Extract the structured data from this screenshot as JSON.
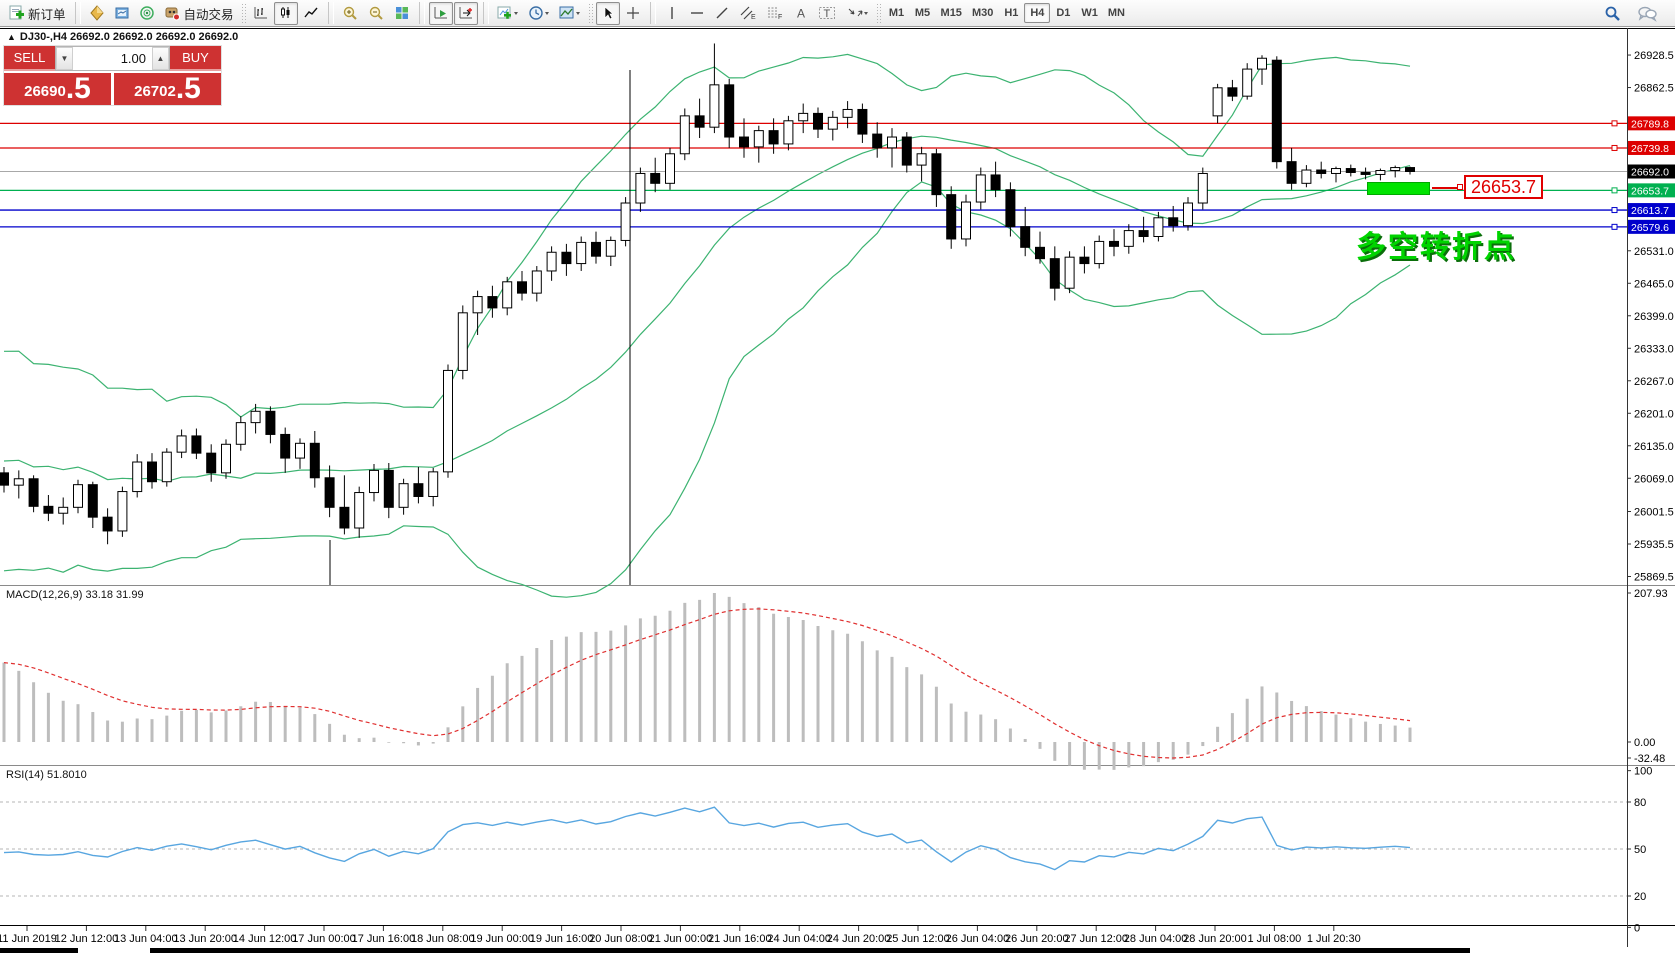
{
  "toolbar": {
    "new_order_label": "新订单",
    "autotrading_label": "自动交易",
    "timeframes": [
      "M1",
      "M5",
      "M15",
      "M30",
      "H1",
      "H4",
      "D1",
      "W1",
      "MN"
    ],
    "active_timeframe": "H4"
  },
  "trade_panel": {
    "sell_label": "SELL",
    "buy_label": "BUY",
    "volume": "1.00",
    "sell_price_main": "26690",
    "sell_price_frac": ".5",
    "buy_price_main": "26702",
    "buy_price_frac": ".5"
  },
  "chart": {
    "symbol_title": "DJ30-,H4  26692.0 26692.0 26692.0 26692.0",
    "macd_label": "MACD(12,26,9) 33.18 31.99",
    "rsi_label": "RSI(14) 51.8010",
    "annotation_price": "26653.7",
    "annotation_text": "多空转折点"
  },
  "colors": {
    "panel_red": "#ce3232",
    "level_red": "#dd0000",
    "level_blue": "#0000cc",
    "level_green": "#00b050",
    "current_line": "#a8a8a8",
    "current_tag": "#000000",
    "bollinger": "#3cb371",
    "macd_hist": "#bdbdbd",
    "macd_signal": "#e03030",
    "rsi_line": "#58a6e0",
    "zone_green": "#00e400",
    "note_green": "#00d400"
  },
  "chart_data": {
    "type": "candlestick",
    "symbol": "DJ30-",
    "timeframe": "H4",
    "title": "DJ30-,H4 26692.0 26692.0 26692.0 26692.0",
    "y_axis_ticks": [
      26928.5,
      26862.5,
      26531.0,
      26465.0,
      26399.0,
      26333.0,
      26267.0,
      26201.0,
      26135.0,
      26069.0,
      26001.5,
      25935.5,
      25869.5
    ],
    "level_lines": [
      {
        "price": 26789.8,
        "label": "26789.8",
        "color": "#dd0000"
      },
      {
        "price": 26739.8,
        "label": "26739.8",
        "color": "#dd0000"
      },
      {
        "price": 26653.7,
        "label": "26653.7",
        "color": "#00b050"
      },
      {
        "price": 26613.7,
        "label": "26613.7",
        "color": "#0000cc"
      },
      {
        "price": 26579.6,
        "label": "26579.6",
        "color": "#0000cc"
      }
    ],
    "current_price": {
      "price": 26692.0,
      "label": "26692.0"
    },
    "x_labels": [
      "11 Jun 2019",
      "12 Jun 12:00",
      "13 Jun 04:00",
      "13 Jun 20:00",
      "14 Jun 12:00",
      "17 Jun 00:00",
      "17 Jun 16:00",
      "18 Jun 08:00",
      "19 Jun 00:00",
      "19 Jun 16:00",
      "20 Jun 08:00",
      "21 Jun 00:00",
      "21 Jun 16:00",
      "24 Jun 04:00",
      "24 Jun 20:00",
      "25 Jun 12:00",
      "26 Jun 04:00",
      "26 Jun 20:00",
      "27 Jun 12:00",
      "28 Jun 04:00",
      "28 Jun 20:00",
      "1 Jul 08:00",
      "1 Jul 20:30"
    ],
    "candles": [
      [
        26080,
        26092,
        26040,
        26055
      ],
      [
        26055,
        26085,
        26028,
        26068
      ],
      [
        26068,
        26075,
        26000,
        26012
      ],
      [
        26012,
        26035,
        25982,
        25998
      ],
      [
        25998,
        26030,
        25975,
        26010
      ],
      [
        26010,
        26066,
        25998,
        26056
      ],
      [
        26056,
        26062,
        25968,
        25990
      ],
      [
        25990,
        26008,
        25935,
        25962
      ],
      [
        25962,
        26052,
        25950,
        26042
      ],
      [
        26042,
        26118,
        26030,
        26102
      ],
      [
        26102,
        26120,
        26048,
        26062
      ],
      [
        26062,
        26130,
        26052,
        26122
      ],
      [
        26122,
        26168,
        26110,
        26155
      ],
      [
        26155,
        26170,
        26108,
        26120
      ],
      [
        26120,
        26138,
        26062,
        26080
      ],
      [
        26080,
        26148,
        26068,
        26138
      ],
      [
        26138,
        26195,
        26125,
        26182
      ],
      [
        26182,
        26220,
        26160,
        26205
      ],
      [
        26205,
        26215,
        26140,
        26158
      ],
      [
        26158,
        26172,
        26080,
        26110
      ],
      [
        26110,
        26150,
        26088,
        26140
      ],
      [
        26140,
        26165,
        26050,
        26070
      ],
      [
        26070,
        26095,
        25990,
        26010
      ],
      [
        26010,
        26075,
        25955,
        25968
      ],
      [
        25968,
        26052,
        25948,
        26040
      ],
      [
        26040,
        26098,
        26022,
        26085
      ],
      [
        26085,
        26100,
        25988,
        26010
      ],
      [
        26010,
        26068,
        25995,
        26058
      ],
      [
        26058,
        26092,
        26018,
        26032
      ],
      [
        26032,
        26090,
        26012,
        26082
      ],
      [
        26082,
        26300,
        26070,
        26288
      ],
      [
        26288,
        26420,
        26270,
        26405
      ],
      [
        26405,
        26450,
        26360,
        26438
      ],
      [
        26438,
        26460,
        26395,
        26415
      ],
      [
        26415,
        26478,
        26400,
        26468
      ],
      [
        26468,
        26490,
        26430,
        26445
      ],
      [
        26445,
        26500,
        26428,
        26490
      ],
      [
        26490,
        26540,
        26470,
        26528
      ],
      [
        26528,
        26545,
        26480,
        26505
      ],
      [
        26505,
        26560,
        26490,
        26548
      ],
      [
        26548,
        26570,
        26505,
        26520
      ],
      [
        26520,
        26560,
        26500,
        26552
      ],
      [
        26552,
        26640,
        26540,
        26628
      ],
      [
        26628,
        26700,
        26610,
        26688
      ],
      [
        26688,
        26720,
        26650,
        26668
      ],
      [
        26668,
        26740,
        26655,
        26728
      ],
      [
        26728,
        26820,
        26715,
        26805
      ],
      [
        26805,
        26840,
        26760,
        26782
      ],
      [
        26782,
        26952,
        26770,
        26868
      ],
      [
        26868,
        26880,
        26740,
        26762
      ],
      [
        26762,
        26800,
        26720,
        26742
      ],
      [
        26742,
        26785,
        26710,
        26775
      ],
      [
        26775,
        26800,
        26728,
        26748
      ],
      [
        26748,
        26805,
        26735,
        26795
      ],
      [
        26795,
        26830,
        26770,
        26810
      ],
      [
        26810,
        26822,
        26760,
        26778
      ],
      [
        26778,
        26815,
        26755,
        26802
      ],
      [
        26802,
        26835,
        26780,
        26818
      ],
      [
        26818,
        26830,
        26750,
        26768
      ],
      [
        26768,
        26792,
        26720,
        26740
      ],
      [
        26740,
        26780,
        26700,
        26762
      ],
      [
        26762,
        26772,
        26690,
        26705
      ],
      [
        26705,
        26742,
        26672,
        26728
      ],
      [
        26728,
        26738,
        26620,
        26645
      ],
      [
        26645,
        26662,
        26535,
        26555
      ],
      [
        26555,
        26645,
        26540,
        26630
      ],
      [
        26630,
        26700,
        26615,
        26685
      ],
      [
        26685,
        26712,
        26640,
        26655
      ],
      [
        26655,
        26670,
        26560,
        26580
      ],
      [
        26580,
        26620,
        26520,
        26538
      ],
      [
        26538,
        26570,
        26505,
        26515
      ],
      [
        26515,
        26540,
        26430,
        26455
      ],
      [
        26455,
        26530,
        26445,
        26518
      ],
      [
        26518,
        26540,
        26485,
        26505
      ],
      [
        26505,
        26562,
        26495,
        26550
      ],
      [
        26550,
        26575,
        26520,
        26540
      ],
      [
        26540,
        26585,
        26525,
        26572
      ],
      [
        26572,
        26600,
        26548,
        26560
      ],
      [
        26560,
        26610,
        26550,
        26598
      ],
      [
        26598,
        26622,
        26570,
        26582
      ],
      [
        26582,
        26640,
        26572,
        26628
      ],
      [
        26628,
        26700,
        26615,
        26688
      ],
      [
        26805,
        26870,
        26790,
        26862
      ],
      [
        26862,
        26878,
        26835,
        26845
      ],
      [
        26845,
        26912,
        26838,
        26900
      ],
      [
        26900,
        26928,
        26868,
        26922
      ],
      [
        26918,
        26926,
        26698,
        26712
      ],
      [
        26712,
        26740,
        26655,
        26668
      ],
      [
        26668,
        26705,
        26660,
        26695
      ],
      [
        26695,
        26712,
        26678,
        26688
      ],
      [
        26688,
        26702,
        26670,
        26698
      ],
      [
        26698,
        26706,
        26682,
        26690
      ],
      [
        26690,
        26700,
        26676,
        26686
      ],
      [
        26686,
        26698,
        26674,
        26694
      ],
      [
        26694,
        26704,
        26680,
        26700
      ],
      [
        26700,
        26702,
        26686,
        26692
      ]
    ],
    "indicators": [
      {
        "name": "Bollinger Bands",
        "period": 20,
        "deviation": 2
      },
      {
        "name": "MACD",
        "params": "12,26,9",
        "values_text": "33.18 31.99",
        "axis_labels": [
          "207.93",
          "0.00",
          "-32.48"
        ]
      },
      {
        "name": "RSI",
        "period": 14,
        "value_text": "51.8010",
        "axis_labels": [
          100,
          80,
          50,
          20,
          0
        ],
        "dashed_levels": [
          80,
          50,
          20
        ]
      }
    ],
    "annotations": {
      "green_zone_price": 26653.7,
      "price_callout": "26653.7",
      "note_text": "多空转折点",
      "vertical_lines_x": [
        630,
        330
      ]
    }
  }
}
